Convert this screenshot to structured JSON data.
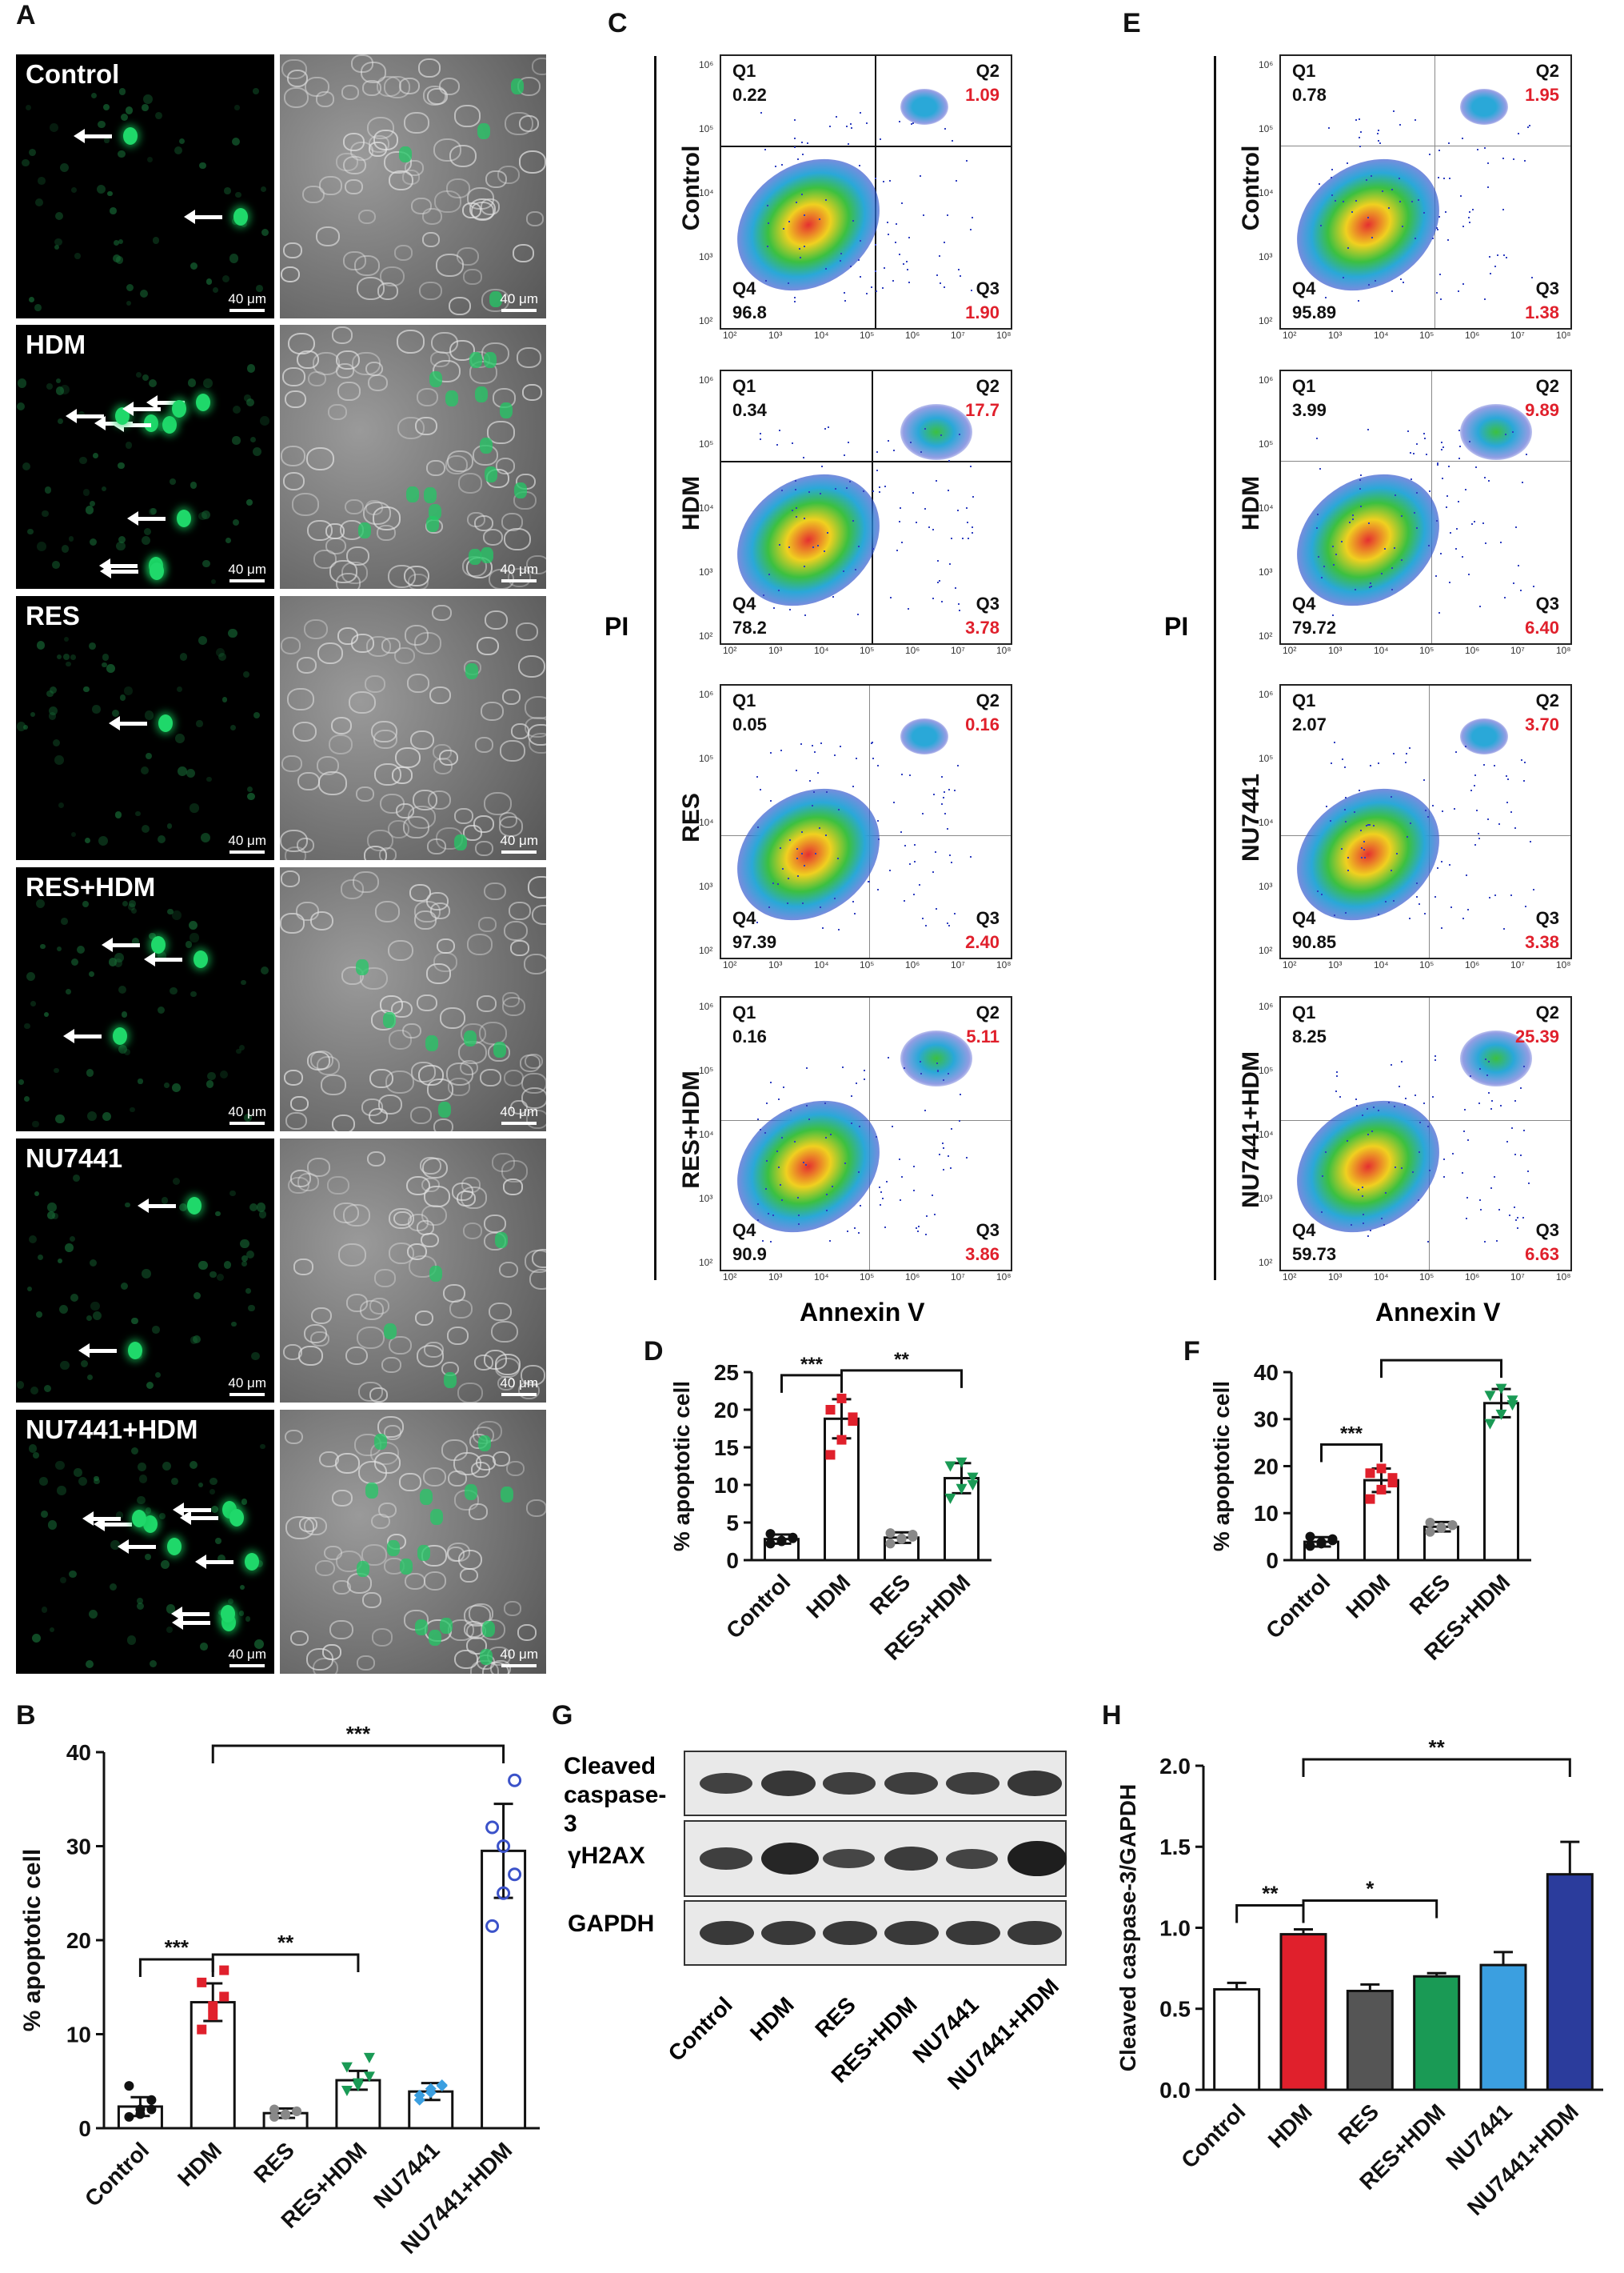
{
  "panel_letters": {
    "A": "A",
    "B": "B",
    "C": "C",
    "D": "D",
    "E": "E",
    "F": "F",
    "G": "G",
    "H": "H"
  },
  "micrographs": {
    "scale_bar": "40 μm",
    "rows": [
      "Control",
      "HDM",
      "RES",
      "RES+HDM",
      "NU7441",
      "NU7441+HDM"
    ]
  },
  "flow_c": {
    "y_axis": "PI",
    "x_axis": "Annexin V",
    "plots": [
      {
        "label": "Control",
        "q1": "0.22",
        "q2": "1.09",
        "q3": "1.90",
        "q4": "96.8"
      },
      {
        "label": "HDM",
        "q1": "0.34",
        "q2": "17.7",
        "q3": "3.78",
        "q4": "78.2"
      },
      {
        "label": "RES",
        "q1": "0.05",
        "q2": "0.16",
        "q3": "2.40",
        "q4": "97.39"
      },
      {
        "label": "RES+HDM",
        "q1": "0.16",
        "q2": "5.11",
        "q3": "3.86",
        "q4": "90.9"
      }
    ]
  },
  "flow_e": {
    "y_axis": "PI",
    "x_axis": "Annexin V",
    "plots": [
      {
        "label": "Control",
        "q1": "0.78",
        "q2": "1.95",
        "q3": "1.38",
        "q4": "95.89"
      },
      {
        "label": "HDM",
        "q1": "3.99",
        "q2": "9.89",
        "q3": "6.40",
        "q4": "79.72"
      },
      {
        "label": "NU7441",
        "q1": "2.07",
        "q2": "3.70",
        "q3": "3.38",
        "q4": "90.85"
      },
      {
        "label": "NU7441+HDM",
        "q1": "8.25",
        "q2": "25.39",
        "q3": "6.63",
        "q4": "59.73"
      }
    ]
  },
  "quadrant_names": {
    "q1": "Q1",
    "q2": "Q2",
    "q3": "Q3",
    "q4": "Q4"
  },
  "western": {
    "labels": [
      "Cleaved caspase-3",
      "γH2AX",
      "GAPDH"
    ],
    "lanes": [
      "Control",
      "HDM",
      "RES",
      "RES+HDM",
      "NU7441",
      "NU7441+HDM"
    ]
  },
  "chart_data": [
    {
      "id": "B",
      "type": "bar",
      "ylabel": "% apoptotic cell",
      "ylim": [
        0,
        40
      ],
      "yticks": [
        0,
        10,
        20,
        30,
        40
      ],
      "categories": [
        "Control",
        "HDM",
        "RES",
        "RES+HDM",
        "NU7441",
        "NU7441+HDM"
      ],
      "values": [
        2.3,
        13.4,
        1.6,
        5.1,
        3.9,
        29.5
      ],
      "errors": [
        1.0,
        2.0,
        0.5,
        1.0,
        0.9,
        5.0
      ],
      "colors": [
        "#111111",
        "#e0202c",
        "#888888",
        "#1a9a55",
        "#3b9fe0",
        "#3b52c9"
      ],
      "points": [
        [
          1.2,
          2.0,
          3.0,
          4.5,
          1.5,
          2.0
        ],
        [
          10.5,
          12,
          14,
          15.5,
          13,
          16.8
        ],
        [
          1.2,
          1.4,
          1.8,
          2.0,
          1.5,
          1.8
        ],
        [
          4.0,
          4.5,
          5.5,
          6.5,
          4.8,
          7.5
        ],
        [
          3.0,
          3.8,
          4.5,
          3.5,
          4.2,
          4.6
        ],
        [
          21.5,
          25,
          27,
          32,
          30,
          37
        ]
      ],
      "annotations": [
        {
          "from": 0,
          "to": 1,
          "label": "***"
        },
        {
          "from": 1,
          "to": 3,
          "label": "**"
        },
        {
          "from": 1,
          "to": 5,
          "label": "***"
        }
      ]
    },
    {
      "id": "D",
      "type": "bar",
      "ylabel": "% apoptotic cell",
      "ylim": [
        0,
        25
      ],
      "yticks": [
        0,
        5,
        10,
        15,
        20,
        25
      ],
      "categories": [
        "Control",
        "HDM",
        "RES",
        "RES+HDM"
      ],
      "values": [
        2.8,
        18.8,
        3.0,
        10.9
      ],
      "errors": [
        0.6,
        2.6,
        0.7,
        2.0
      ],
      "colors": [
        "#111111",
        "#e0202c",
        "#888888",
        "#1a9a55"
      ],
      "points": [
        [
          2.2,
          2.5,
          3.0,
          3.5,
          2.6,
          2.9
        ],
        [
          14,
          16,
          18.5,
          20,
          21.5,
          19
        ],
        [
          2.2,
          2.8,
          3.4,
          3.6,
          2.9,
          3.1
        ],
        [
          8.2,
          9.5,
          11,
          12.5,
          13,
          10
        ]
      ],
      "annotations": [
        {
          "from": 0,
          "to": 1,
          "label": "***"
        },
        {
          "from": 1,
          "to": 3,
          "label": "**"
        }
      ]
    },
    {
      "id": "F",
      "type": "bar",
      "ylabel": "% apoptotic cell",
      "ylim": [
        0,
        40
      ],
      "yticks": [
        0,
        10,
        20,
        30,
        40
      ],
      "categories": [
        "Control",
        "HDM",
        "RES",
        "RES+HDM"
      ],
      "values": [
        3.9,
        17.0,
        7.1,
        33.4
      ],
      "errors": [
        1.0,
        2.5,
        1.0,
        3.0
      ],
      "colors": [
        "#111111",
        "#e0202c",
        "#888888",
        "#1a9a55"
      ],
      "points": [
        [
          3.0,
          3.5,
          4.5,
          5.0,
          3.8,
          4.2
        ],
        [
          13,
          15,
          16.5,
          18.5,
          19.5,
          17.5
        ],
        [
          6.0,
          6.8,
          7.5,
          8.0,
          7.0,
          7.4
        ],
        [
          29,
          31,
          33,
          35,
          36.5,
          34
        ]
      ],
      "annotations": [
        {
          "from": 0,
          "to": 1,
          "label": "***"
        },
        {
          "from": 1,
          "to": 3,
          "label": "***"
        }
      ]
    },
    {
      "id": "H",
      "type": "bar",
      "ylabel": "Cleaved caspase-3/GAPDH",
      "ylim": [
        0,
        2.0
      ],
      "yticks": [
        0.0,
        0.5,
        1.0,
        1.5,
        2.0
      ],
      "categories": [
        "Control",
        "HDM",
        "RES",
        "RES+HDM",
        "NU7441",
        "NU7441+HDM"
      ],
      "values": [
        0.62,
        0.96,
        0.61,
        0.7,
        0.77,
        1.33
      ],
      "errors": [
        0.04,
        0.03,
        0.04,
        0.02,
        0.08,
        0.2
      ],
      "colors": [
        "#ffffff",
        "#e0202c",
        "#555555",
        "#1a9a55",
        "#3b9fe0",
        "#2b3c9c"
      ],
      "annotations": [
        {
          "from": 0,
          "to": 1,
          "label": "**"
        },
        {
          "from": 1,
          "to": 3,
          "label": "*"
        },
        {
          "from": 1,
          "to": 5,
          "label": "**"
        }
      ]
    }
  ]
}
